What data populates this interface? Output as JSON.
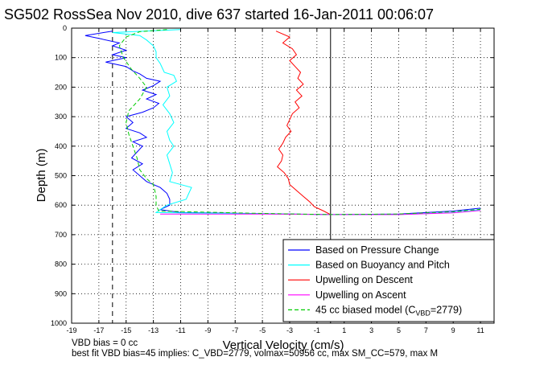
{
  "chart_data": {
    "type": "line",
    "title": "SG502 RossSea Nov 2010, dive 637 started 16-Jan-2011 00:06:07",
    "xlabel": "Vertical Velocity (cm/s)",
    "ylabel": "Depth (m)",
    "xlim": [
      -19,
      12
    ],
    "ylim": [
      1000,
      0
    ],
    "y_reversed": true,
    "grid": true,
    "legend_position": "bottom-right",
    "xticks": [
      "-19",
      "-17",
      "-15",
      "-13",
      "-11",
      "-9",
      "-7",
      "-5",
      "-3",
      "-1",
      "1",
      "3",
      "5",
      "7",
      "9",
      "11"
    ],
    "yticks": [
      "0",
      "100",
      "200",
      "300",
      "400",
      "500",
      "600",
      "700",
      "800",
      "900",
      "1000"
    ],
    "reference_lines": [
      {
        "x": 0.0,
        "style": "solid",
        "color": "#000000"
      },
      {
        "x": -16.0,
        "style": "dashed",
        "color": "#000000"
      }
    ],
    "series": [
      {
        "name": "Based on Pressure Change",
        "color": "#0000ff",
        "points": [
          [
            -16,
            10
          ],
          [
            -18,
            25
          ],
          [
            -17,
            35
          ],
          [
            -15.5,
            50
          ],
          [
            -16,
            60
          ],
          [
            -15,
            75
          ],
          [
            -16,
            90
          ],
          [
            -15,
            100
          ],
          [
            -16.5,
            115
          ],
          [
            -15,
            130
          ],
          [
            -14.5,
            145
          ],
          [
            -14,
            155
          ],
          [
            -13.5,
            170
          ],
          [
            -12.5,
            180
          ],
          [
            -13,
            195
          ],
          [
            -13.8,
            210
          ],
          [
            -12.8,
            225
          ],
          [
            -13.5,
            240
          ],
          [
            -12.6,
            255
          ],
          [
            -13,
            270
          ],
          [
            -13.8,
            285
          ],
          [
            -15,
            300
          ],
          [
            -14.5,
            320
          ],
          [
            -15,
            340
          ],
          [
            -14,
            355
          ],
          [
            -13.5,
            370
          ],
          [
            -14.5,
            385
          ],
          [
            -13.8,
            400
          ],
          [
            -14.2,
            420
          ],
          [
            -14.6,
            440
          ],
          [
            -13.8,
            460
          ],
          [
            -14.5,
            480
          ],
          [
            -14,
            500
          ],
          [
            -13.5,
            520
          ],
          [
            -12.5,
            540
          ],
          [
            -12,
            560
          ],
          [
            -11.8,
            580
          ],
          [
            -11.8,
            600
          ],
          [
            -12.5,
            615
          ],
          [
            -11,
            625
          ],
          [
            0,
            632
          ],
          [
            5,
            630
          ],
          [
            9,
            620
          ],
          [
            11,
            610
          ]
        ]
      },
      {
        "name": "Based on Buoyancy and Pitch",
        "color": "#00ffff",
        "points": [
          [
            -11,
            5
          ],
          [
            -16,
            15
          ],
          [
            -14,
            25
          ],
          [
            -13.5,
            40
          ],
          [
            -13,
            60
          ],
          [
            -12.8,
            80
          ],
          [
            -12.8,
            100
          ],
          [
            -12.5,
            120
          ],
          [
            -12.2,
            150
          ],
          [
            -11.5,
            160
          ],
          [
            -11.3,
            180
          ],
          [
            -12,
            200
          ],
          [
            -11.8,
            230
          ],
          [
            -12.3,
            260
          ],
          [
            -11.8,
            290
          ],
          [
            -11.5,
            320
          ],
          [
            -12,
            350
          ],
          [
            -11.8,
            380
          ],
          [
            -11.5,
            400
          ],
          [
            -12,
            430
          ],
          [
            -11.8,
            460
          ],
          [
            -11.6,
            490
          ],
          [
            -11.8,
            520
          ],
          [
            -10.2,
            540
          ],
          [
            -10.4,
            560
          ],
          [
            -10.6,
            580
          ],
          [
            -12,
            600
          ],
          [
            -12.5,
            615
          ],
          [
            -12.8,
            625
          ],
          [
            0,
            632
          ],
          [
            5,
            632
          ],
          [
            9,
            625
          ],
          [
            11,
            615
          ]
        ]
      },
      {
        "name": "Upwelling on Descent",
        "color": "#ff0000",
        "points": [
          [
            -4,
            10
          ],
          [
            -3,
            30
          ],
          [
            -3.5,
            50
          ],
          [
            -2.8,
            70
          ],
          [
            -2.5,
            90
          ],
          [
            -3,
            110
          ],
          [
            -2.6,
            130
          ],
          [
            -2.2,
            150
          ],
          [
            -2.4,
            170
          ],
          [
            -2,
            190
          ],
          [
            -2.5,
            210
          ],
          [
            -2.1,
            230
          ],
          [
            -2.6,
            250
          ],
          [
            -2.3,
            270
          ],
          [
            -2.8,
            290
          ],
          [
            -3,
            310
          ],
          [
            -3.2,
            330
          ],
          [
            -2.9,
            350
          ],
          [
            -3.3,
            370
          ],
          [
            -3.5,
            390
          ],
          [
            -3.8,
            410
          ],
          [
            -3.5,
            430
          ],
          [
            -3.6,
            450
          ],
          [
            -3.9,
            470
          ],
          [
            -3.4,
            490
          ],
          [
            -3.1,
            510
          ],
          [
            -3,
            530
          ],
          [
            -2.5,
            550
          ],
          [
            -2,
            570
          ],
          [
            -1.5,
            590
          ],
          [
            -1.2,
            605
          ],
          [
            -0.5,
            620
          ],
          [
            0,
            632
          ]
        ]
      },
      {
        "name": "Upwelling on Ascent",
        "color": "#ff00ff",
        "points": [
          [
            -12.5,
            630
          ],
          [
            -5,
            630
          ],
          [
            0,
            632
          ],
          [
            5,
            632
          ],
          [
            9,
            626
          ],
          [
            11,
            618
          ]
        ]
      },
      {
        "name": "45 cc biased model (C",
        "color": "#00cc00",
        "points": [
          [
            -12,
            5
          ],
          [
            -14,
            12
          ],
          [
            -15,
            30
          ],
          [
            -15.5,
            60
          ],
          [
            -15.2,
            100
          ],
          [
            -14.6,
            140
          ],
          [
            -14,
            170
          ],
          [
            -13.5,
            200
          ],
          [
            -14,
            240
          ],
          [
            -14.8,
            280
          ],
          [
            -15,
            320
          ],
          [
            -14.8,
            360
          ],
          [
            -14.5,
            400
          ],
          [
            -14.2,
            440
          ],
          [
            -14,
            480
          ],
          [
            -13.5,
            510
          ],
          [
            -13,
            530
          ],
          [
            -12.8,
            570
          ],
          [
            -12.8,
            600
          ],
          [
            -12.6,
            620
          ],
          [
            -5,
            628
          ],
          [
            0,
            632
          ],
          [
            5,
            630
          ],
          [
            9,
            622
          ],
          [
            11,
            614
          ]
        ]
      }
    ]
  },
  "legend": {
    "entries": [
      {
        "label": "Based on Pressure Change",
        "color": "#0000ff",
        "style": "solid"
      },
      {
        "label": "Based on Buoyancy and Pitch",
        "color": "#00ffff",
        "style": "solid"
      },
      {
        "label": "Upwelling on Descent",
        "color": "#ff0000",
        "style": "solid"
      },
      {
        "label": "Upwelling on Ascent",
        "color": "#ff00ff",
        "style": "solid"
      },
      {
        "label": "45 cc biased model (C",
        "color": "#00cc00",
        "style": "dashed"
      }
    ],
    "model_sub": "VBD",
    "model_tail": "=2779)"
  },
  "footer": {
    "line1": "VBD bias = 0 cc",
    "line2": "best fit VBD bias=45 implies: C_VBD=2779, volmax=50956 cc, max SM_CC=579, max M"
  }
}
